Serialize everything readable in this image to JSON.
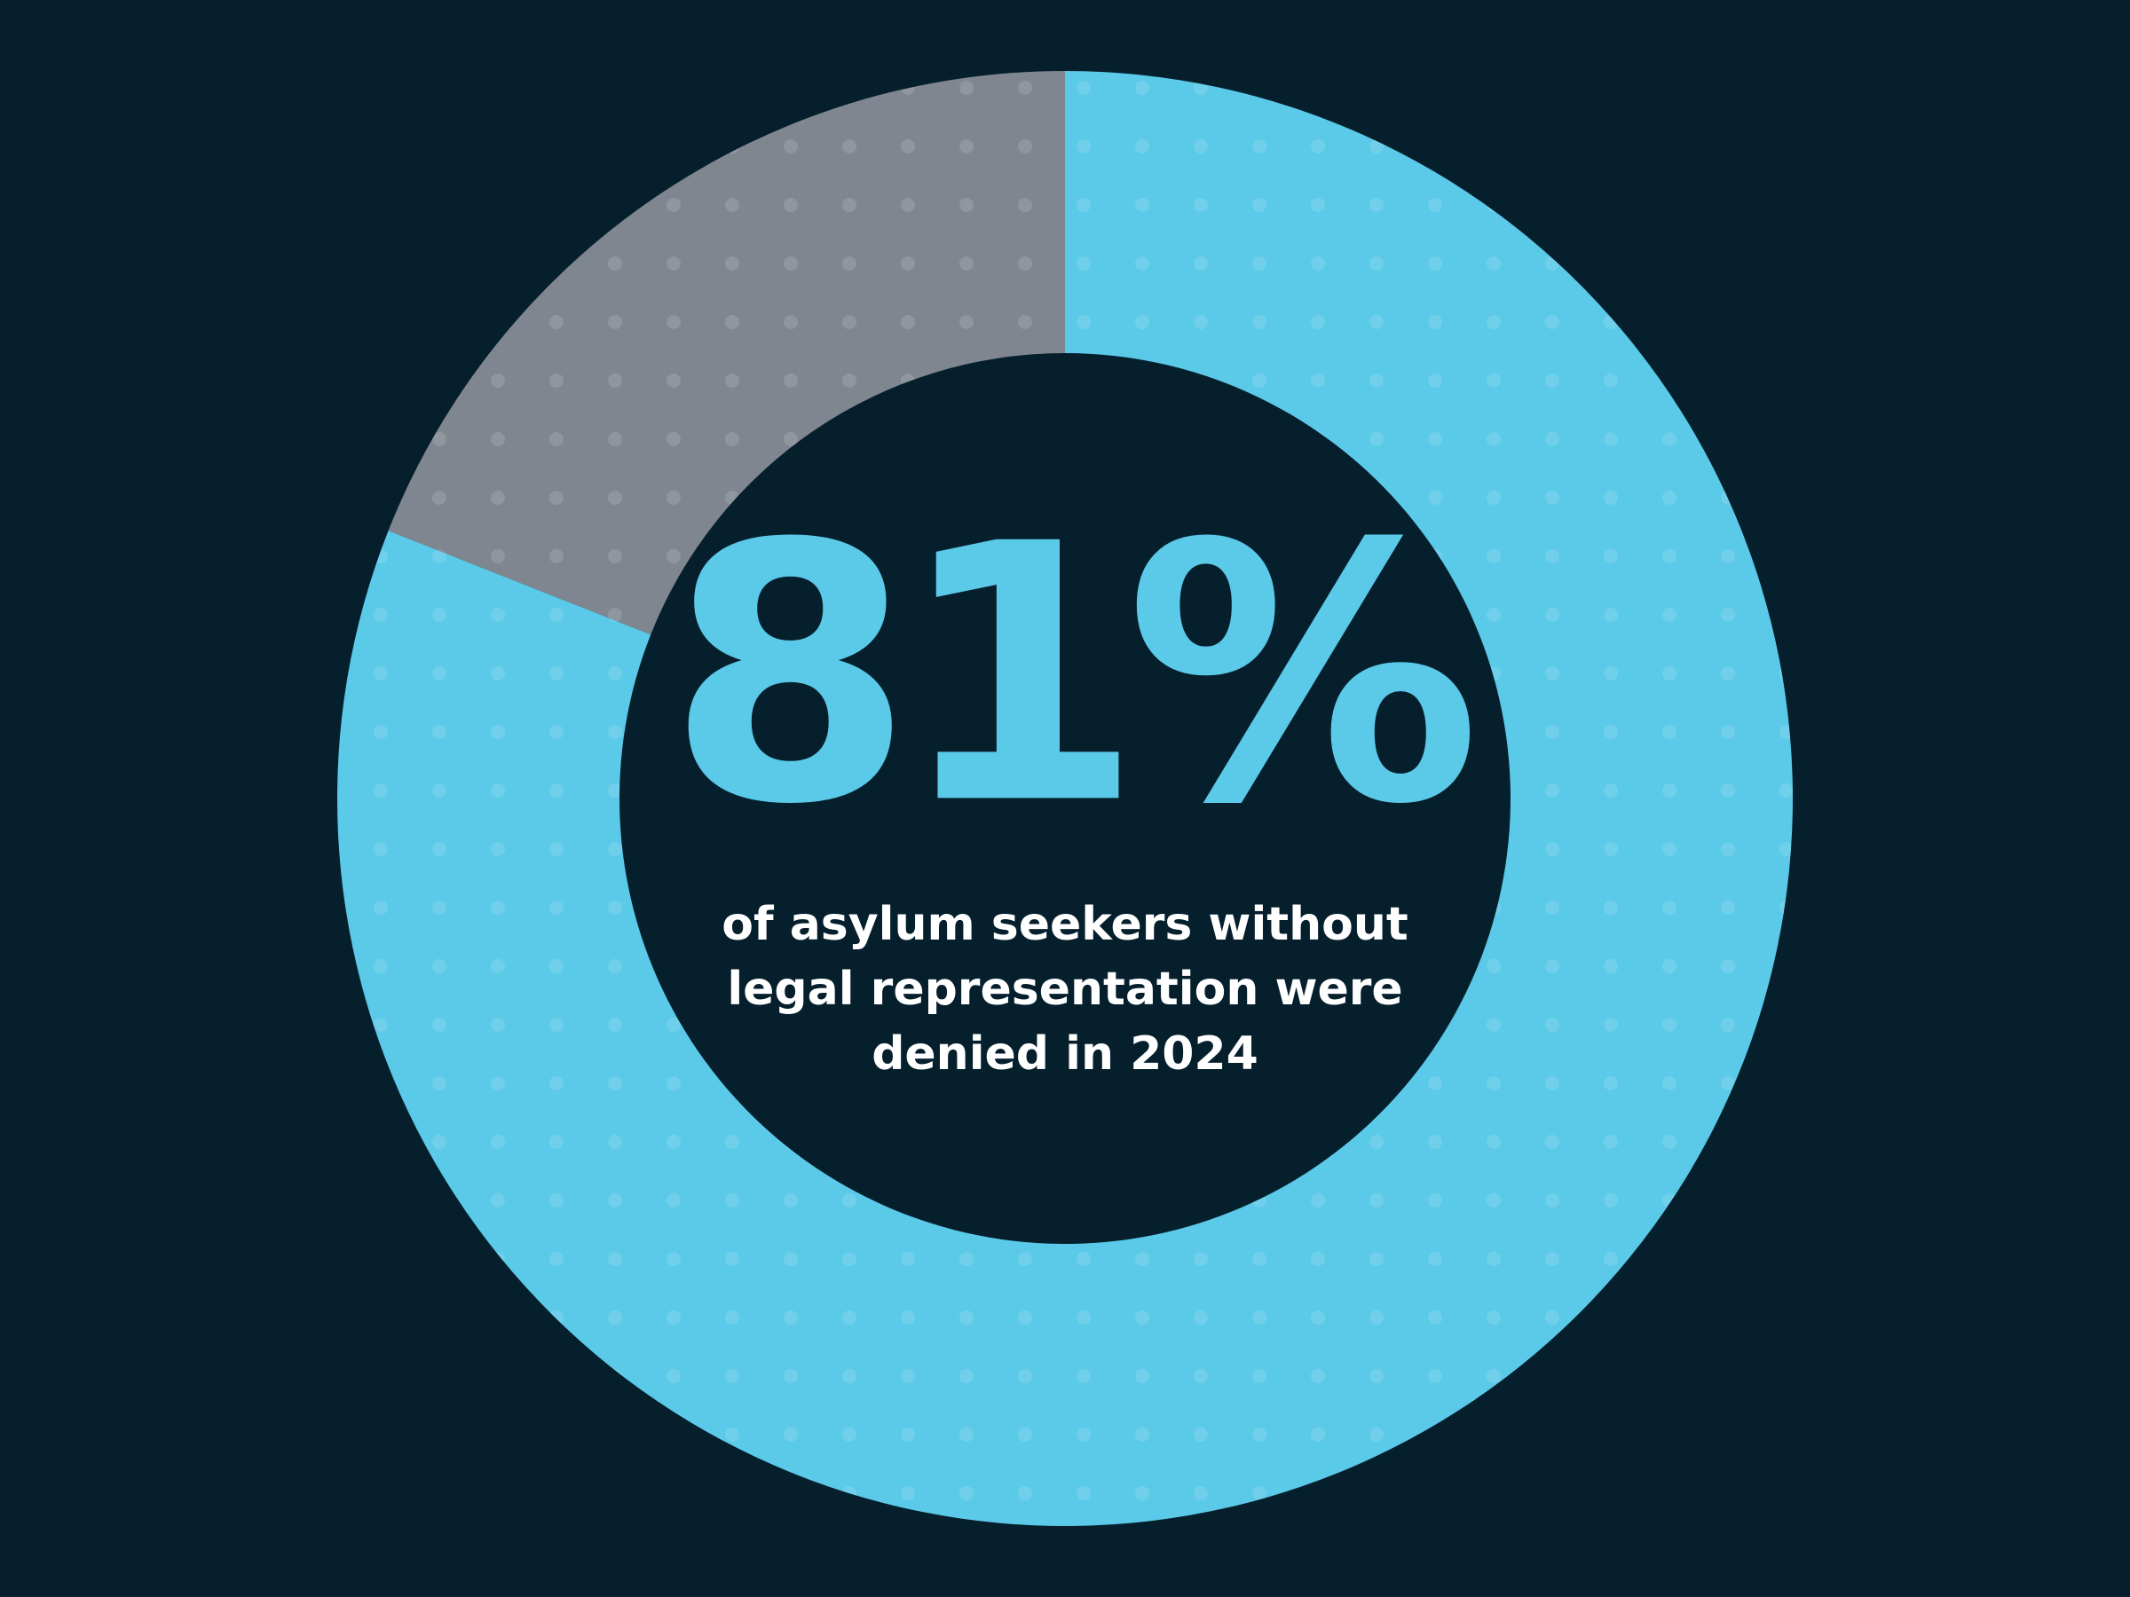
{
  "chart_data": {
    "type": "donut",
    "values": [
      81,
      19
    ],
    "value_labels": [
      "81%",
      null
    ],
    "colors": [
      "#5bc9e8",
      "#80868f"
    ],
    "annotation": [
      "of asylum seekers without",
      "legal representation were",
      "denied in 2024"
    ]
  }
}
